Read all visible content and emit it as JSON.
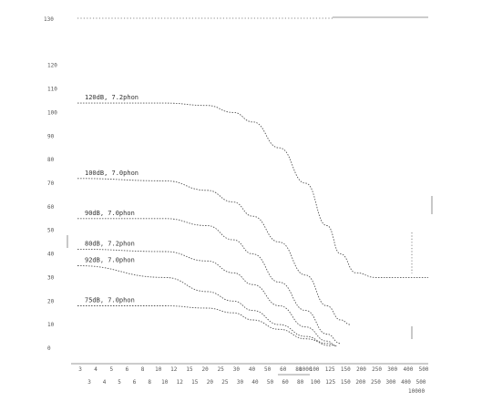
{
  "chart_data": {
    "type": "line",
    "title": "",
    "xlabel": "",
    "ylabel": "",
    "x_scale": "log",
    "grid": false,
    "legend": "none",
    "ylim": [
      0,
      140
    ],
    "xlim": [
      1,
      10000
    ],
    "y_ticks": [
      "0",
      "10",
      "20",
      "30",
      "40",
      "50",
      "60",
      "70",
      "80",
      "90",
      "100",
      "110",
      "120"
    ],
    "top_label": "130",
    "x_tick_rows": [
      [
        "3",
        "4",
        "5",
        "6",
        "8",
        "10",
        "12",
        "15",
        "20",
        "25",
        "30",
        "40",
        "50",
        "60",
        "80",
        "100",
        "125",
        "150",
        "200",
        "250",
        "300",
        "400",
        "500"
      ],
      [
        "3",
        "4",
        "5",
        "6",
        "8",
        "10",
        "12",
        "15",
        "20",
        "25",
        "30",
        "40",
        "50",
        "60",
        "80",
        "100",
        "125",
        "150",
        "200",
        "250",
        "300",
        "400",
        "500"
      ]
    ],
    "series": [
      {
        "name": "120dB, 7.2phon",
        "x": [
          1,
          10,
          30,
          60,
          100,
          200,
          400,
          700,
          1000,
          1500,
          2500,
          4000,
          10000
        ],
        "y": [
          104,
          104,
          103,
          100,
          96,
          85,
          70,
          52,
          40,
          32,
          30,
          30,
          30
        ]
      },
      {
        "name": "100dB, 7.0phon",
        "x": [
          1,
          10,
          30,
          60,
          100,
          200,
          400,
          700,
          1000,
          1300
        ],
        "y": [
          72,
          71,
          67,
          62,
          56,
          45,
          31,
          18,
          12,
          10
        ]
      },
      {
        "name": "90dB, 7.0phon",
        "x": [
          1,
          10,
          30,
          60,
          100,
          200,
          400,
          700,
          1000
        ],
        "y": [
          55,
          55,
          52,
          46,
          40,
          28,
          16,
          6,
          2
        ]
      },
      {
        "name": "80dB, 7.2phon",
        "x": [
          1,
          10,
          30,
          60,
          100,
          200,
          400,
          700,
          900
        ],
        "y": [
          42,
          41,
          37,
          32,
          27,
          18,
          9,
          3,
          1
        ]
      },
      {
        "name": "92dB, 7.0phon",
        "x": [
          1,
          10,
          30,
          60,
          100,
          200,
          400,
          700,
          900
        ],
        "y": [
          35,
          30,
          24,
          20,
          16,
          10,
          5,
          2,
          1
        ]
      },
      {
        "name": "75dB, 7.0phon",
        "x": [
          1,
          10,
          30,
          60,
          100,
          200,
          400,
          800
        ],
        "y": [
          18,
          18,
          17,
          15,
          12,
          8,
          4,
          1
        ]
      }
    ],
    "annotations": [
      "1000",
      "10000"
    ]
  }
}
